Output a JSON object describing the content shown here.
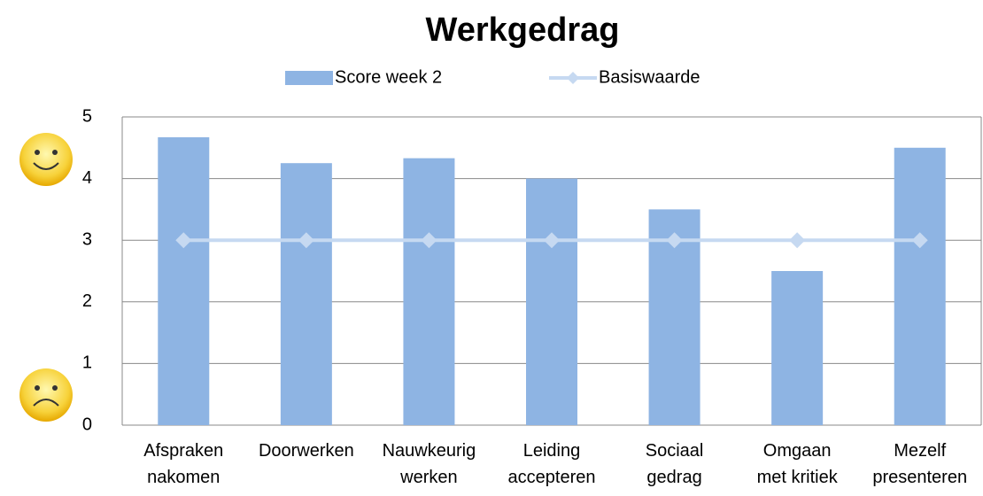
{
  "chart_data": {
    "type": "bar",
    "title": "Werkgedrag",
    "categories": [
      "Afspraken\nnakomen",
      "Doorwerken",
      "Nauwkeurig\nwerken",
      "Leiding\naccepteren",
      "Sociaal\ngedrag",
      "Omgaan\nmet kritiek",
      "Mezelf\npresenteren"
    ],
    "series": [
      {
        "name": "Score week 2",
        "type": "bar",
        "color": "#8eb4e3",
        "values": [
          4.67,
          4.25,
          4.33,
          4.0,
          3.5,
          2.5,
          4.5
        ]
      },
      {
        "name": "Basiswaarde",
        "type": "line",
        "color": "#c6d9f1",
        "values": [
          3,
          3,
          3,
          3,
          3,
          3,
          3
        ]
      }
    ],
    "ylim": [
      0,
      5
    ],
    "yticks": [
      0,
      1,
      2,
      3,
      4,
      5
    ],
    "grid": true,
    "legend": "top"
  }
}
